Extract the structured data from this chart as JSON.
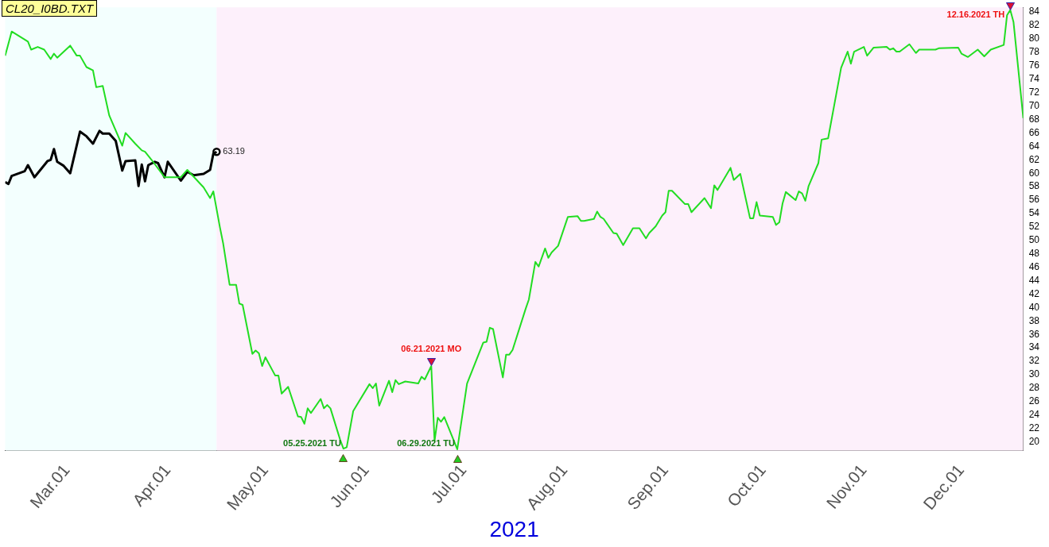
{
  "chart_data": {
    "type": "line",
    "title": "CL20_I0BD.TXT",
    "xlabel": "2021",
    "xlim": [
      "2021-02-10",
      "2021-12-20"
    ],
    "xticks": [
      {
        "value": "2021-03-01",
        "label": "Mar.01"
      },
      {
        "value": "2021-04-01",
        "label": "Apr.01"
      },
      {
        "value": "2021-05-01",
        "label": "May.01"
      },
      {
        "value": "2021-06-01",
        "label": "Jun.01"
      },
      {
        "value": "2021-07-01",
        "label": "Jul.01"
      },
      {
        "value": "2021-08-01",
        "label": "Aug.01"
      },
      {
        "value": "2021-09-01",
        "label": "Sep.01"
      },
      {
        "value": "2021-10-01",
        "label": "Oct.01"
      },
      {
        "value": "2021-11-01",
        "label": "Nov.01"
      },
      {
        "value": "2021-12-01",
        "label": "Dec.01"
      }
    ],
    "ylim": [
      18.7,
      84.7
    ],
    "yticks": [
      20,
      22,
      24,
      26,
      28,
      30,
      32,
      34,
      36,
      38,
      40,
      42,
      44,
      46,
      48,
      50,
      52,
      54,
      56,
      58,
      60,
      62,
      64,
      66,
      68,
      70,
      72,
      74,
      76,
      78,
      80,
      82,
      84
    ],
    "grid": false,
    "legend": false,
    "marker": "none",
    "line_style": "solid",
    "bands": [
      {
        "axis": "x",
        "from": "2021-02-10",
        "to": "2021-04-16",
        "color": "#f3fffe"
      },
      {
        "axis": "x",
        "from": "2021-04-16",
        "to": "2021-12-20",
        "color": "#fdf0fb"
      }
    ],
    "annotations": [
      {
        "text": "05.25.2021 TU",
        "x": "2021-05-25",
        "y": 19.0
      },
      {
        "text": "06.21.2021 MO",
        "x": "2021-06-21",
        "y": 31.3
      },
      {
        "text": "06.29.2021 TU",
        "x": "2021-06-29",
        "y": 18.9
      },
      {
        "text": "12.16.2021 TH",
        "x": "2021-12-16",
        "y": 84.3
      }
    ],
    "series": [
      {
        "type": "line",
        "color": "#22dd22",
        "x": [
          "2021-02-10",
          "2021-02-12",
          "2021-02-17",
          "2021-02-18",
          "2021-02-20",
          "2021-02-22",
          "2021-02-24",
          "2021-02-25",
          "2021-02-26",
          "2021-03-02",
          "2021-03-04",
          "2021-03-05",
          "2021-03-07",
          "2021-03-09",
          "2021-03-10",
          "2021-03-12",
          "2021-03-14",
          "2021-03-18",
          "2021-03-19",
          "2021-03-22",
          "2021-03-24",
          "2021-03-25",
          "2021-03-27",
          "2021-03-31",
          "2021-04-05",
          "2021-04-07",
          "2021-04-12",
          "2021-04-14",
          "2021-04-15",
          "2021-04-17",
          "2021-04-18",
          "2021-04-20",
          "2021-04-22",
          "2021-04-23",
          "2021-04-24",
          "2021-04-27",
          "2021-04-28",
          "2021-04-29",
          "2021-04-30",
          "2021-05-01",
          "2021-05-04",
          "2021-05-05",
          "2021-05-06",
          "2021-05-08",
          "2021-05-11",
          "2021-05-12",
          "2021-05-13",
          "2021-05-14",
          "2021-05-15",
          "2021-05-18",
          "2021-05-19",
          "2021-05-20",
          "2021-05-21",
          "2021-05-24",
          "2021-05-25",
          "2021-05-26",
          "2021-05-28",
          "2021-06-02",
          "2021-06-03",
          "2021-06-04",
          "2021-06-05",
          "2021-06-08",
          "2021-06-09",
          "2021-06-10",
          "2021-06-11",
          "2021-06-13",
          "2021-06-17",
          "2021-06-18",
          "2021-06-19",
          "2021-06-21",
          "2021-06-22",
          "2021-06-23",
          "2021-06-24",
          "2021-06-25",
          "2021-06-29",
          "2021-07-02",
          "2021-07-07",
          "2021-07-08",
          "2021-07-09",
          "2021-07-10",
          "2021-07-13",
          "2021-07-14",
          "2021-07-15",
          "2021-07-16",
          "2021-07-20",
          "2021-07-21",
          "2021-07-23",
          "2021-07-24",
          "2021-07-26",
          "2021-07-27",
          "2021-07-28",
          "2021-07-30",
          "2021-08-02",
          "2021-08-05",
          "2021-08-06",
          "2021-08-07",
          "2021-08-10",
          "2021-08-11",
          "2021-08-12",
          "2021-08-13",
          "2021-08-16",
          "2021-08-17",
          "2021-08-19",
          "2021-08-22",
          "2021-08-24",
          "2021-08-26",
          "2021-08-27",
          "2021-08-29",
          "2021-08-31",
          "2021-09-01",
          "2021-09-02",
          "2021-09-03",
          "2021-09-07",
          "2021-09-08",
          "2021-09-09",
          "2021-09-13",
          "2021-09-15",
          "2021-09-16",
          "2021-09-17",
          "2021-09-21",
          "2021-09-22",
          "2021-09-24",
          "2021-09-27",
          "2021-09-28",
          "2021-09-29",
          "2021-09-30",
          "2021-10-04",
          "2021-10-05",
          "2021-10-06",
          "2021-10-07",
          "2021-10-08",
          "2021-10-11",
          "2021-10-12",
          "2021-10-13",
          "2021-10-14",
          "2021-10-15",
          "2021-10-18",
          "2021-10-19",
          "2021-10-21",
          "2021-10-25",
          "2021-10-27",
          "2021-10-28",
          "2021-10-29",
          "2021-11-01",
          "2021-11-02",
          "2021-11-04",
          "2021-11-08",
          "2021-11-09",
          "2021-11-10",
          "2021-11-11",
          "2021-11-12",
          "2021-11-15",
          "2021-11-17",
          "2021-11-18",
          "2021-11-23",
          "2021-11-24",
          "2021-11-30",
          "2021-12-01",
          "2021-12-03",
          "2021-12-06",
          "2021-12-08",
          "2021-12-10",
          "2021-12-14",
          "2021-12-15",
          "2021-12-16",
          "2021-12-17",
          "2021-12-20"
        ],
        "values": [
          77.5,
          81.1,
          79.6,
          78.4,
          78.8,
          78.4,
          77.0,
          77.8,
          77.2,
          79.0,
          77.5,
          77.5,
          75.8,
          75.3,
          72.8,
          73.0,
          68.6,
          64.1,
          66.0,
          64.4,
          63.4,
          63.2,
          62.0,
          59.4,
          59.4,
          60.5,
          57.9,
          56.3,
          57.3,
          52.0,
          49.6,
          43.4,
          43.4,
          40.6,
          40.4,
          33.1,
          33.6,
          33.2,
          31.3,
          32.6,
          29.9,
          29.9,
          27.2,
          28.2,
          23.8,
          23.7,
          22.7,
          25.0,
          24.3,
          26.4,
          25.0,
          25.5,
          25.0,
          20.3,
          19.0,
          19.2,
          24.6,
          28.6,
          28.0,
          28.7,
          25.4,
          29.1,
          27.4,
          29.2,
          28.6,
          29.0,
          28.7,
          29.7,
          29.3,
          31.3,
          20.1,
          23.6,
          23.0,
          23.7,
          18.9,
          28.7,
          34.8,
          34.9,
          37.0,
          36.8,
          29.6,
          33.0,
          33.0,
          33.7,
          39.8,
          41.2,
          46.8,
          46.1,
          48.8,
          47.4,
          48.2,
          49.2,
          53.5,
          53.6,
          52.9,
          52.9,
          53.2,
          54.3,
          53.5,
          53.2,
          51.1,
          51.0,
          49.3,
          51.8,
          51.8,
          50.3,
          51.1,
          52.1,
          53.7,
          54.2,
          57.4,
          57.4,
          55.4,
          55.4,
          54.2,
          56.3,
          54.8,
          58.2,
          57.5,
          60.8,
          59.0,
          59.9,
          53.3,
          53.3,
          55.7,
          53.7,
          53.5,
          52.3,
          52.7,
          55.5,
          57.2,
          56.0,
          57.3,
          57.0,
          55.9,
          58.1,
          61.5,
          65.0,
          65.2,
          75.7,
          78.1,
          76.3,
          78.1,
          78.8,
          77.5,
          78.7,
          78.8,
          78.4,
          78.6,
          78.1,
          78.1,
          79.2,
          77.9,
          78.4,
          78.4,
          78.6,
          78.7,
          77.8,
          77.3,
          78.4,
          77.4,
          78.4,
          79.1,
          83.5,
          84.3,
          82.5,
          68.2
        ]
      },
      {
        "type": "line",
        "color": "#000000",
        "x": [
          "2021-02-10",
          "2021-02-11",
          "2021-02-12",
          "2021-02-16",
          "2021-02-17",
          "2021-02-19",
          "2021-02-23",
          "2021-02-24",
          "2021-02-25",
          "2021-02-26",
          "2021-02-28",
          "2021-03-02",
          "2021-03-05",
          "2021-03-07",
          "2021-03-09",
          "2021-03-11",
          "2021-03-12",
          "2021-03-14",
          "2021-03-16",
          "2021-03-18",
          "2021-03-19",
          "2021-03-22",
          "2021-03-23",
          "2021-03-24",
          "2021-03-25",
          "2021-03-26",
          "2021-03-28",
          "2021-03-29",
          "2021-03-31",
          "2021-04-01",
          "2021-04-05",
          "2021-04-07",
          "2021-04-09",
          "2021-04-12",
          "2021-04-14",
          "2021-04-15",
          "2021-04-16"
        ],
        "values": [
          58.7,
          58.4,
          59.6,
          60.3,
          61.2,
          59.4,
          61.8,
          62.0,
          63.6,
          61.7,
          61.1,
          60.0,
          66.2,
          65.5,
          64.4,
          66.3,
          65.9,
          65.9,
          64.8,
          60.4,
          61.8,
          61.9,
          58.1,
          61.3,
          58.8,
          61.2,
          61.7,
          61.5,
          59.4,
          61.7,
          58.9,
          60.2,
          59.7,
          59.9,
          60.5,
          62.9,
          63.19
        ]
      },
      {
        "type": "scatter",
        "color": "#000000",
        "marker": "circle",
        "x": [
          "2021-04-16"
        ],
        "values": [
          63.19
        ],
        "value_labels": [
          "63.19"
        ]
      }
    ]
  }
}
